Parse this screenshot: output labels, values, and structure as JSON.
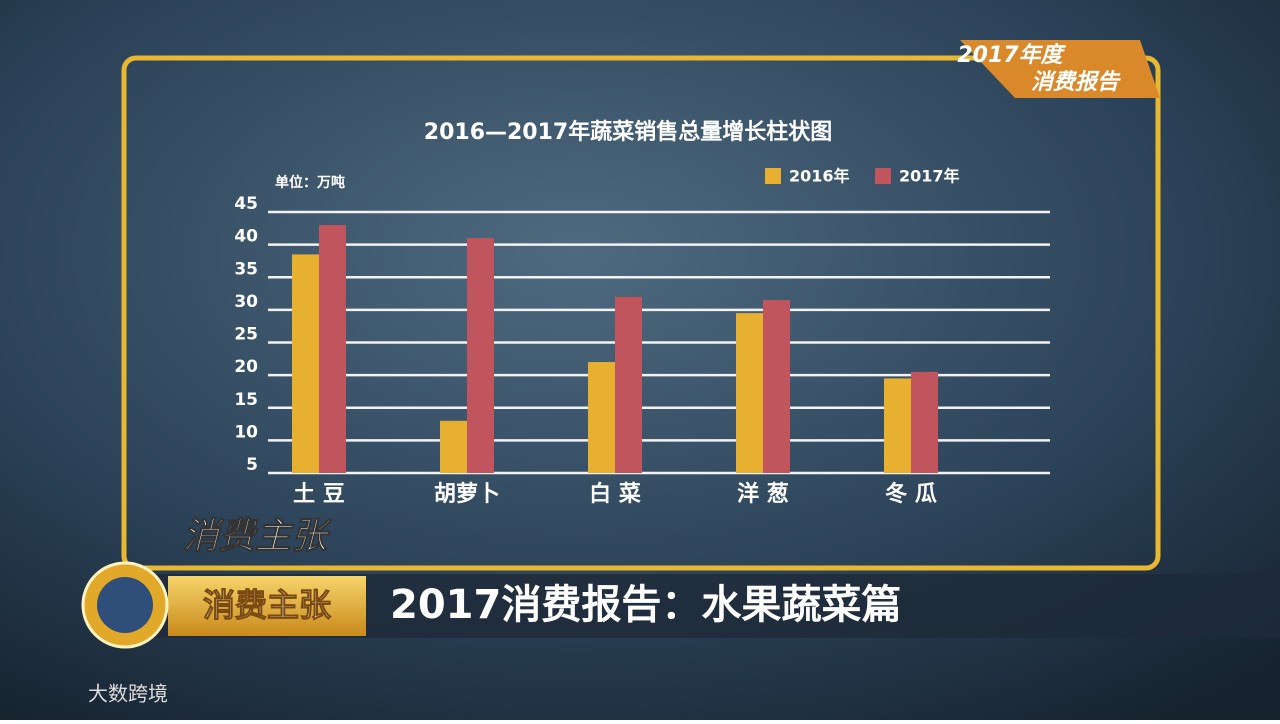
{
  "chart_data": {
    "type": "bar",
    "title": "2016—2017年蔬菜销售总量增长柱状图",
    "unit_label": "单位：万吨",
    "categories": [
      "土 豆",
      "胡萝卜",
      "白 菜",
      "洋 葱",
      "冬 瓜"
    ],
    "series": [
      {
        "name": "2016年",
        "color": "#e8b030",
        "values": [
          38.5,
          13,
          22,
          29.5,
          19.5
        ]
      },
      {
        "name": "2017年",
        "color": "#c0555e",
        "values": [
          43,
          41,
          32,
          31.5,
          20.5
        ]
      }
    ],
    "ylim": [
      5,
      45
    ],
    "yticks": [
      5,
      10,
      15,
      20,
      25,
      30,
      35,
      40,
      45
    ],
    "grid": true
  },
  "badge": {
    "year": "2017年度",
    "text": "消费报告"
  },
  "program_logo": "消费主张",
  "banner": {
    "program": "消费主张",
    "headline": "2017消费报告：水果蔬菜篇"
  },
  "watermark": "大数跨境"
}
